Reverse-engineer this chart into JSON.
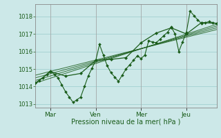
{
  "bg_color": "#cce8e8",
  "grid_color": "#99cccc",
  "line_color": "#1a5c1a",
  "marker_color": "#1a5c1a",
  "xlabel": "Pression niveau de la mer( hPa )",
  "ylim": [
    1012.8,
    1018.7
  ],
  "yticks": [
    1013,
    1014,
    1015,
    1016,
    1017,
    1018
  ],
  "xtick_labels": [
    "Mar",
    "Ven",
    "Mer",
    "Jeu"
  ],
  "xtick_positions": [
    24,
    96,
    168,
    240
  ],
  "x_vlines": [
    24,
    96,
    168,
    240
  ],
  "xlim": [
    0,
    288
  ],
  "series_zigzag": {
    "x": [
      0,
      6,
      12,
      18,
      24,
      30,
      36,
      42,
      48,
      54,
      60,
      66,
      72,
      78,
      84,
      90,
      96,
      102,
      108,
      114,
      120,
      126,
      132,
      138,
      144,
      150,
      156,
      162,
      168,
      174,
      180,
      186,
      192,
      198,
      204,
      210,
      216,
      222,
      228,
      234,
      240,
      246,
      252,
      258,
      264,
      270,
      276,
      282,
      288
    ],
    "y": [
      1014.2,
      1014.35,
      1014.5,
      1014.7,
      1014.9,
      1014.7,
      1014.5,
      1014.1,
      1013.7,
      1013.4,
      1013.1,
      1013.25,
      1013.4,
      1014.0,
      1014.6,
      1015.05,
      1015.5,
      1016.4,
      1015.8,
      1015.2,
      1014.8,
      1014.55,
      1014.3,
      1014.65,
      1015.0,
      1015.25,
      1015.5,
      1015.75,
      1015.6,
      1015.8,
      1016.6,
      1016.55,
      1016.5,
      1016.7,
      1016.9,
      1017.1,
      1017.4,
      1017.0,
      1016.0,
      1016.55,
      1017.1,
      1018.3,
      1018.05,
      1017.8,
      1017.6,
      1017.65,
      1017.7,
      1017.65,
      1017.6
    ]
  },
  "series_smooth": {
    "x": [
      0,
      24,
      48,
      72,
      96,
      120,
      144,
      168,
      192,
      216,
      240,
      264,
      288
    ],
    "y": [
      1014.2,
      1014.85,
      1014.6,
      1014.75,
      1015.5,
      1015.55,
      1015.65,
      1016.5,
      1017.05,
      1017.35,
      1017.0,
      1017.65,
      1017.6
    ]
  },
  "trend_lines": [
    {
      "x": [
        0,
        288
      ],
      "y": [
        1014.2,
        1017.55
      ]
    },
    {
      "x": [
        0,
        288
      ],
      "y": [
        1014.35,
        1017.45
      ]
    },
    {
      "x": [
        0,
        288
      ],
      "y": [
        1014.5,
        1017.35
      ]
    },
    {
      "x": [
        0,
        288
      ],
      "y": [
        1014.65,
        1017.25
      ]
    }
  ]
}
